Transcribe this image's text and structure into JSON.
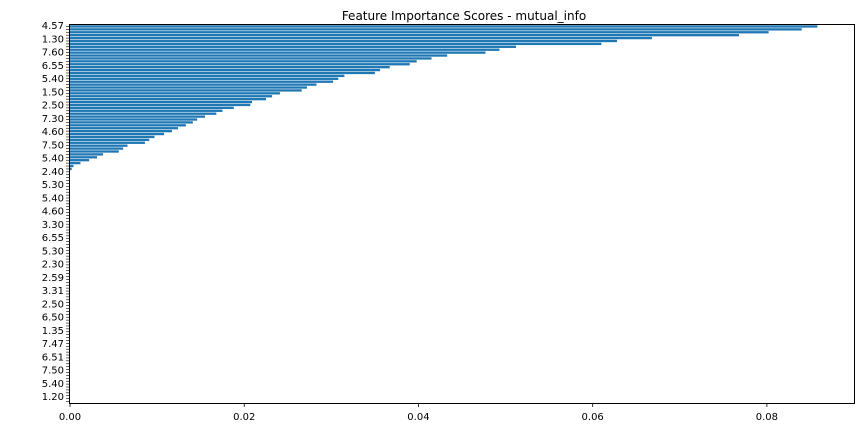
{
  "chart_data": {
    "type": "bar",
    "orientation": "horizontal",
    "title": "Feature Importance Scores - mutual_info",
    "xlabel": "",
    "ylabel": "",
    "xlim": [
      0.0,
      0.09
    ],
    "x_ticks": [
      0.0,
      0.02,
      0.04,
      0.06,
      0.08
    ],
    "x_tick_labels": [
      "0.00",
      "0.02",
      "0.04",
      "0.06",
      "0.08"
    ],
    "bar_color": "#1f77b4",
    "grid": false,
    "legend": "none",
    "visible_category_labels": [
      "4.57",
      "1.30",
      "7.60",
      "6.55",
      "5.40",
      "1.50",
      "2.50",
      "7.30",
      "4.60",
      "7.50",
      "5.40",
      "2.40",
      "5.30",
      "5.40",
      "4.60",
      "3.30",
      "6.55",
      "5.30",
      "2.30",
      "2.59",
      "3.31",
      "2.50",
      "6.50",
      "1.35",
      "7.47",
      "6.51",
      "7.50",
      "5.40",
      "1.20"
    ],
    "values": [
      0.0858,
      0.084,
      0.0802,
      0.0768,
      0.0668,
      0.0628,
      0.061,
      0.0512,
      0.0493,
      0.0477,
      0.0433,
      0.0415,
      0.0398,
      0.039,
      0.0367,
      0.0356,
      0.035,
      0.0315,
      0.0308,
      0.0302,
      0.0283,
      0.0272,
      0.0266,
      0.0241,
      0.0232,
      0.0225,
      0.0209,
      0.0207,
      0.0188,
      0.0175,
      0.0168,
      0.0155,
      0.0146,
      0.0141,
      0.0133,
      0.0124,
      0.0117,
      0.0108,
      0.0097,
      0.0091,
      0.0086,
      0.0066,
      0.0061,
      0.0056,
      0.0038,
      0.0031,
      0.0022,
      0.0012,
      0.0004,
      0.0002,
      0,
      0,
      0,
      0,
      0,
      0,
      0,
      0,
      0,
      0,
      0,
      0,
      0,
      0,
      0,
      0,
      0,
      0,
      0,
      0,
      0,
      0,
      0,
      0,
      0,
      0,
      0,
      0,
      0,
      0,
      0,
      0,
      0,
      0,
      0,
      0,
      0,
      0,
      0,
      0,
      0,
      0,
      0,
      0,
      0,
      0,
      0,
      0,
      0,
      0,
      0,
      0,
      0,
      0,
      0,
      0,
      0,
      0,
      0,
      0,
      0,
      0,
      0,
      0,
      0,
      0,
      0,
      0,
      0,
      0,
      0,
      0,
      0,
      0,
      0,
      0,
      0,
      0,
      0,
      0
    ]
  }
}
